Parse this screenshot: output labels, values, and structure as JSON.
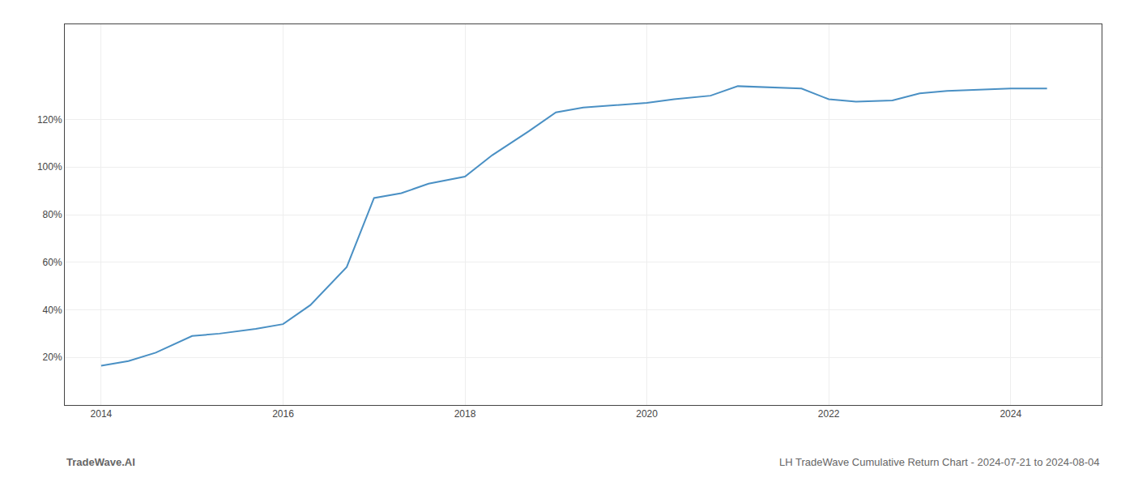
{
  "chart_data": {
    "type": "line",
    "annotations": [
      "TradeWave.AI",
      "LH TradeWave Cumulative Return Chart - 2024-07-21 to 2024-08-04"
    ],
    "x": [
      2014.0,
      2014.3,
      2014.6,
      2015.0,
      2015.3,
      2015.7,
      2016.0,
      2016.3,
      2016.7,
      2017.0,
      2017.3,
      2017.6,
      2018.0,
      2018.3,
      2018.7,
      2019.0,
      2019.3,
      2019.7,
      2020.0,
      2020.3,
      2020.7,
      2021.0,
      2021.3,
      2021.7,
      2022.0,
      2022.3,
      2022.7,
      2023.0,
      2023.3,
      2023.7,
      2024.0,
      2024.4
    ],
    "values": [
      0.165,
      0.185,
      0.22,
      0.29,
      0.3,
      0.32,
      0.34,
      0.42,
      0.58,
      0.87,
      0.89,
      0.93,
      0.96,
      1.05,
      1.15,
      1.23,
      1.25,
      1.26,
      1.27,
      1.285,
      1.3,
      1.34,
      1.335,
      1.33,
      1.285,
      1.275,
      1.28,
      1.31,
      1.32,
      1.325,
      1.33,
      1.33
    ],
    "color": "#4a90c4",
    "xlim": [
      2013.6,
      2025.0
    ],
    "ylim": [
      0.0,
      1.6
    ],
    "xticks": [
      2014,
      2016,
      2018,
      2020,
      2022,
      2024
    ],
    "yticks": [
      {
        "value": 0.2,
        "label": "20%"
      },
      {
        "value": 0.4,
        "label": "40%"
      },
      {
        "value": 0.6,
        "label": "60%"
      },
      {
        "value": 0.8,
        "label": "80%"
      },
      {
        "value": 1.0,
        "label": "100%"
      },
      {
        "value": 1.2,
        "label": "120%"
      }
    ],
    "grid": true
  }
}
